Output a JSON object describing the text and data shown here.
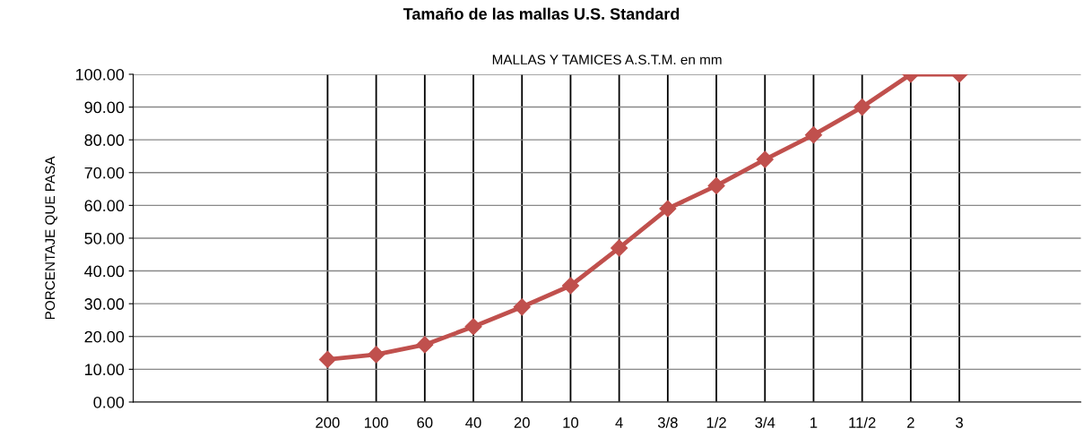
{
  "chart_data": {
    "type": "line",
    "title": "Tamaño de las mallas U.S. Standard",
    "subtitle": "MALLAS Y TAMICES A.S.T.M. en mm",
    "ylabel": "PORCENTAJE QUE PASA",
    "categories": [
      "200",
      "100",
      "60",
      "40",
      "20",
      "10",
      "4",
      "3/8",
      "1/2",
      "3/4",
      "1",
      "11/2",
      "2",
      "3"
    ],
    "series": [
      {
        "color": "#c0504d",
        "values": [
          13,
          14.5,
          17.5,
          23,
          29,
          35.5,
          47,
          59,
          66,
          74,
          81.5,
          90,
          100,
          100
        ]
      }
    ],
    "ylim": [
      0,
      100
    ],
    "yticks": [
      {
        "value": 0,
        "label": "0.00"
      },
      {
        "value": 10,
        "label": "10.00"
      },
      {
        "value": 20,
        "label": "20.00"
      },
      {
        "value": 30,
        "label": "30.00"
      },
      {
        "value": 40,
        "label": "40.00"
      },
      {
        "value": 50,
        "label": "50.00"
      },
      {
        "value": 60,
        "label": "60.00"
      },
      {
        "value": 70,
        "label": "70.00"
      },
      {
        "value": 80,
        "label": "80.00"
      },
      {
        "value": 90,
        "label": "90.00"
      },
      {
        "value": 100,
        "label": "100.00"
      }
    ],
    "grid": true,
    "marker": "diamond",
    "line_style": "solid"
  }
}
